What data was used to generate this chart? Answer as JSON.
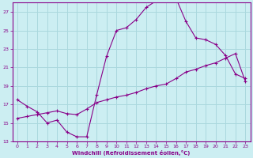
{
  "xlabel": "Windchill (Refroidissement éolien,°C)",
  "bg_color": "#cceef2",
  "grid_color": "#aad8de",
  "line_color": "#880088",
  "xlim": [
    -0.5,
    23.5
  ],
  "ylim": [
    13,
    28
  ],
  "xticks": [
    0,
    1,
    2,
    3,
    4,
    5,
    6,
    7,
    8,
    9,
    10,
    11,
    12,
    13,
    14,
    15,
    16,
    17,
    18,
    19,
    20,
    21,
    22,
    23
  ],
  "yticks": [
    13,
    15,
    17,
    19,
    21,
    23,
    25,
    27
  ],
  "curve1_x": [
    0,
    1,
    2,
    3,
    4,
    5,
    6,
    7,
    8,
    9,
    10,
    11,
    12,
    13,
    14,
    15,
    16,
    17,
    18,
    19,
    20,
    21,
    22,
    23
  ],
  "curve1_y": [
    17.5,
    16.8,
    16.2,
    15.0,
    15.3,
    14.0,
    13.5,
    13.5,
    18.0,
    22.2,
    25.0,
    25.3,
    26.2,
    27.5,
    28.2,
    28.7,
    28.5,
    26.0,
    24.2,
    24.0,
    23.5,
    22.3,
    20.3,
    19.8
  ],
  "curve2_x": [
    0,
    1,
    2,
    3,
    4,
    5,
    6,
    7,
    8,
    9,
    10,
    11,
    12,
    13,
    14,
    15,
    16,
    17,
    18,
    19,
    20,
    21,
    22,
    23
  ],
  "curve2_y": [
    15.5,
    15.7,
    15.9,
    16.1,
    16.3,
    16.0,
    15.9,
    16.5,
    17.2,
    17.5,
    17.8,
    18.0,
    18.3,
    18.7,
    19.0,
    19.2,
    19.8,
    20.5,
    20.8,
    21.2,
    21.5,
    22.0,
    22.5,
    19.5
  ]
}
